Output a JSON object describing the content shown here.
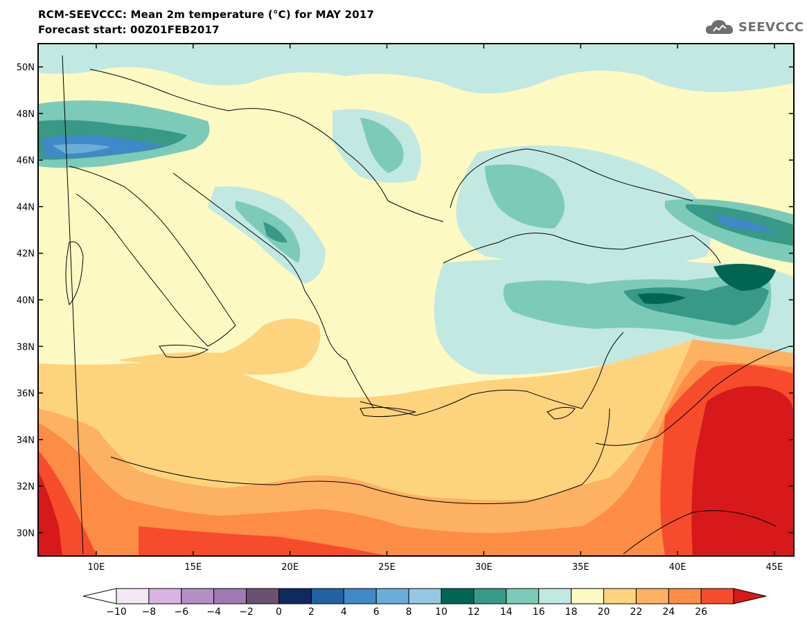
{
  "header": {
    "title_line1": "RCM-SEEVCCC: Mean 2m temperature (°C) for MAY 2017",
    "title_line2": "Forecast start: 00Z01FEB2017"
  },
  "logo": {
    "text": "SEEVCCC",
    "icon": "cloud-logo-icon"
  },
  "map": {
    "lon_range": [
      7,
      46
    ],
    "lat_range": [
      29,
      51
    ],
    "lon_ticks": [
      "10E",
      "15E",
      "20E",
      "25E",
      "30E",
      "35E",
      "40E",
      "45E"
    ],
    "lat_ticks": [
      "30N",
      "32N",
      "34N",
      "36N",
      "38N",
      "40N",
      "42N",
      "44N",
      "46N",
      "48N",
      "50N"
    ]
  },
  "colorbar": {
    "labels": [
      "-10",
      "-8",
      "-6",
      "-4",
      "-2",
      "0",
      "2",
      "4",
      "6",
      "8",
      "10",
      "12",
      "14",
      "16",
      "18",
      "20",
      "22",
      "24",
      "26"
    ],
    "colors": [
      "#f3e6f5",
      "#d9b4e2",
      "#b48fc6",
      "#a07ab4",
      "#6a5174",
      "#10295e",
      "#2162a2",
      "#4089c7",
      "#6aadd8",
      "#96c7e2",
      "#006653",
      "#379986",
      "#7ccab8",
      "#c2e8e2",
      "#fdf9c3",
      "#fed37d",
      "#fdb163",
      "#fd8c45",
      "#f64c2c"
    ],
    "under_color": "#ffffff",
    "over_color": "#d7191c"
  }
}
